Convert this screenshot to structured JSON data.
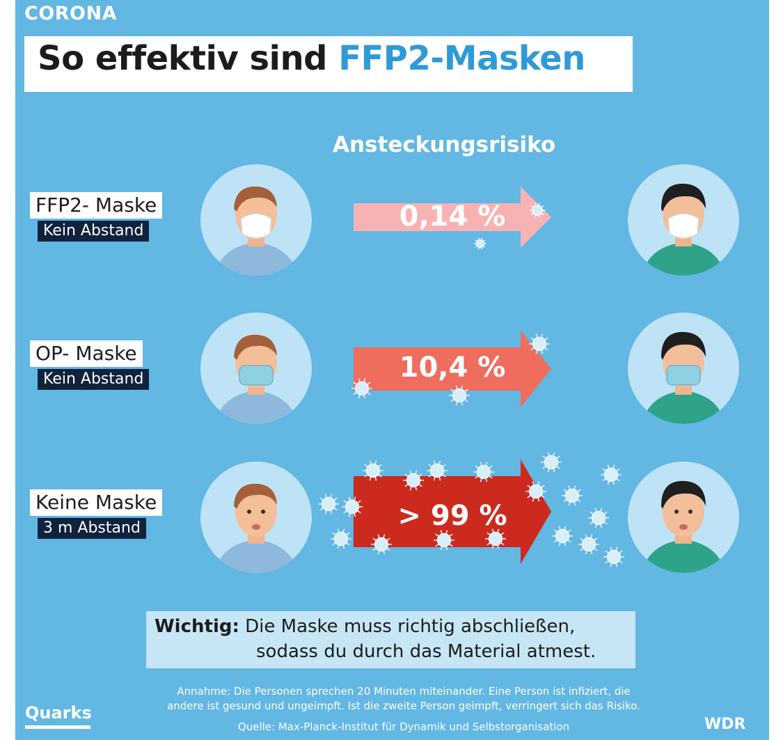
{
  "header": {
    "kicker": "CORONA",
    "title_main": "So effektiv sind ",
    "title_accent": "FFP2-Masken"
  },
  "column_heading": "Ansteckungsrisiko",
  "rows": [
    {
      "label": "FFP2- Maske",
      "sub": "Kein Abstand",
      "risk": "0,14 %",
      "arrow_color": "#f7b3b3"
    },
    {
      "label": "OP- Maske",
      "sub": "Kein Abstand",
      "risk": "10,4 %",
      "arrow_color": "#ee6d5d"
    },
    {
      "label": "Keine Maske",
      "sub": "3 m Abstand",
      "risk": "> 99 %",
      "arrow_color": "#cc2a1f"
    }
  ],
  "note": {
    "lead": "Wichtig:",
    "line1": " Die Maske muss richtig abschließen,",
    "line2": "sodass du durch das Material atmest."
  },
  "footer": {
    "line1": "Annahme: Die Personen sprechen 20 Minuten miteinander. Eine Person ist infiziert, die",
    "line2": "andere ist gesund und ungeimpft. Ist die zweite Person geimpft, verringert sich das Risiko.",
    "source": "Quelle: Max-Planck-Institut für Dynamik und Selbstorganisation"
  },
  "logos": {
    "left": "Quarks",
    "right": "WDR"
  },
  "colors": {
    "background": "#62b7e3",
    "title_accent": "#2e9ad6",
    "label_dark": "#11223d",
    "virus": "#d8eef9"
  }
}
